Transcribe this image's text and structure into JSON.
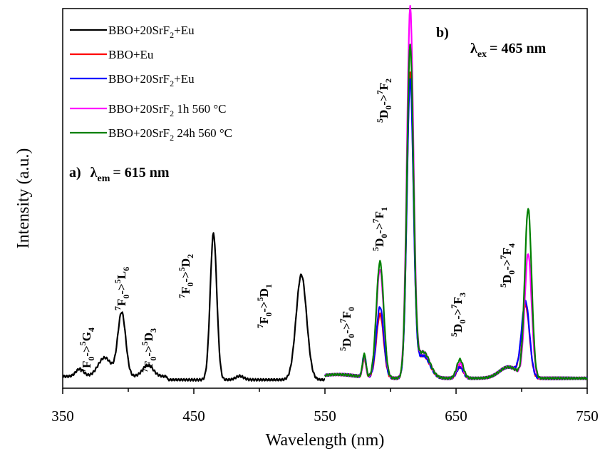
{
  "chart_data": {
    "type": "line",
    "xlabel": "Wavelength (nm)",
    "ylabel": "Intensity (a.u.)",
    "xlim": [
      350,
      750
    ],
    "ylim": [
      0,
      1.0
    ],
    "x_ticks": [
      "350",
      "450",
      "550",
      "650",
      "750"
    ],
    "grid": false,
    "legend_position": "top-left",
    "panel_a": {
      "label": "a)",
      "lambda_symbol": "λ",
      "lambda_sub": "em",
      "lambda_value": "= 615 nm"
    },
    "panel_b": {
      "label": "b)",
      "lambda_symbol": "λ",
      "lambda_sub": "ex",
      "lambda_value": "= 465 nm"
    },
    "series": [
      {
        "name": "BBO+20SrF2+Eu",
        "legend": {
          "main": "BBO+20SrF",
          "sub": "2",
          "rest": "+Eu"
        },
        "color": "#000000",
        "kind": "excitation",
        "x_range": [
          350,
          550
        ],
        "baseline": 0.02,
        "peaks": [
          [
            363,
            0.02,
            3
          ],
          [
            382,
            0.05,
            5
          ],
          [
            395,
            0.17,
            3
          ],
          [
            415,
            0.03,
            4
          ],
          [
            465,
            0.39,
            2.5
          ],
          [
            485,
            0.01,
            3
          ],
          [
            532,
            0.28,
            4
          ]
        ]
      },
      {
        "name": "BBO+Eu",
        "legend": {
          "main": "BBO+Eu",
          "sub": "",
          "rest": ""
        },
        "color": "#ff0000",
        "kind": "emission",
        "x_range": [
          550,
          750
        ],
        "baseline": 0.015,
        "peaks": [
          [
            580,
            0.05,
            1.3
          ],
          [
            592,
            0.17,
            2.8
          ],
          [
            615,
            0.81,
            2.5
          ],
          [
            625,
            0.06,
            5
          ],
          [
            653,
            0.03,
            2.5
          ],
          [
            690,
            0.03,
            7
          ],
          [
            703,
            0.19,
            3
          ]
        ]
      },
      {
        "name": "BBO+20SrF2+Eu",
        "legend": {
          "main": "BBO+20SrF",
          "sub": "2",
          "rest": "+Eu"
        },
        "color": "#0000ff",
        "kind": "emission",
        "x_range": [
          550,
          750
        ],
        "baseline": 0.015,
        "peaks": [
          [
            580,
            0.06,
            1.3
          ],
          [
            592,
            0.19,
            2.8
          ],
          [
            615,
            0.79,
            2.5
          ],
          [
            625,
            0.06,
            5
          ],
          [
            653,
            0.03,
            2.5
          ],
          [
            690,
            0.03,
            7
          ],
          [
            703,
            0.2,
            3
          ]
        ]
      },
      {
        "name": "BBO+20SrF2 1h 560 °C",
        "legend": {
          "main": "BBO+20SrF",
          "sub": "2",
          "rest": " 1h 560 °C"
        },
        "color": "#ff00ff",
        "kind": "emission",
        "x_range": [
          550,
          750
        ],
        "baseline": 0.015,
        "peaks": [
          [
            580,
            0.05,
            1.3
          ],
          [
            592,
            0.29,
            2.8
          ],
          [
            615,
            0.98,
            2.5
          ],
          [
            625,
            0.07,
            5
          ],
          [
            653,
            0.04,
            2.5
          ],
          [
            690,
            0.03,
            7
          ],
          [
            705,
            0.33,
            2.6
          ]
        ]
      },
      {
        "name": "BBO+20SrF2 24h 560 °C",
        "legend": {
          "main": "BBO+20SrF",
          "sub": "2",
          "rest": " 24h 560 °C"
        },
        "color": "#008000",
        "kind": "emission",
        "x_range": [
          550,
          750
        ],
        "baseline": 0.015,
        "peaks": [
          [
            580,
            0.06,
            1.3
          ],
          [
            592,
            0.31,
            2.8
          ],
          [
            615,
            0.88,
            2.5
          ],
          [
            625,
            0.07,
            5
          ],
          [
            653,
            0.05,
            2.5
          ],
          [
            690,
            0.03,
            7
          ],
          [
            705,
            0.45,
            2.6
          ]
        ]
      }
    ],
    "annotations": [
      {
        "id": "7f0-5g4",
        "a": "7",
        "b": "F",
        "bs": "0",
        "arrow": "->",
        "c": "5",
        "d": "G",
        "ds": "4"
      },
      {
        "id": "7f0-5l6",
        "a": "7",
        "b": "F",
        "bs": "0",
        "arrow": "->",
        "c": "5",
        "d": "L",
        "ds": "6"
      },
      {
        "id": "7f0-5d3",
        "a": "7",
        "b": "F",
        "bs": "0",
        "arrow": "->",
        "c": "5",
        "d": "D",
        "ds": "3"
      },
      {
        "id": "7f0-5d2",
        "a": "7",
        "b": "F",
        "bs": "0",
        "arrow": "->",
        "c": "5",
        "d": "D",
        "ds": "2"
      },
      {
        "id": "7f0-5d1",
        "a": "7",
        "b": "F",
        "bs": "0",
        "arrow": "->",
        "c": "5",
        "d": "D",
        "ds": "1"
      },
      {
        "id": "5d0-7f0",
        "a": "5",
        "b": "D",
        "bs": "0",
        "arrow": "->",
        "c": "7",
        "d": "F",
        "ds": "0"
      },
      {
        "id": "5d0-7f1",
        "a": "5",
        "b": "D",
        "bs": "0",
        "arrow": "->",
        "c": "7",
        "d": "F",
        "ds": "1"
      },
      {
        "id": "5d0-7f2",
        "a": "5",
        "b": "D",
        "bs": "0",
        "arrow": "->",
        "c": "7",
        "d": "F",
        "ds": "2"
      },
      {
        "id": "5d0-7f3",
        "a": "5",
        "b": "D",
        "bs": "0",
        "arrow": "->",
        "c": "7",
        "d": "F",
        "ds": "3"
      },
      {
        "id": "5d0-7f4",
        "a": "5",
        "b": "D",
        "bs": "0",
        "arrow": "->",
        "c": "7",
        "d": "F",
        "ds": "4"
      }
    ]
  }
}
